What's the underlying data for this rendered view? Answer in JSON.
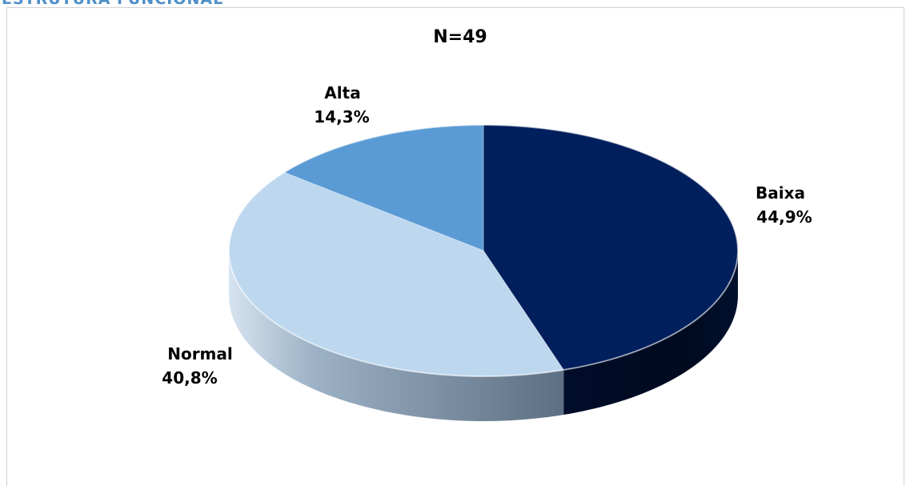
{
  "header": {
    "text": "ESTRUTURA FUNCIONAL"
  },
  "chart_data": {
    "type": "pie",
    "title": "N=49",
    "slices": [
      {
        "label": "Baixa",
        "value": 44.9,
        "value_label": "44,9%",
        "color": "#001f5c"
      },
      {
        "label": "Normal",
        "value": 40.8,
        "value_label": "40,8%",
        "color": "#bdd7ee"
      },
      {
        "label": "Alta",
        "value": 14.3,
        "value_label": "14,3%",
        "color": "#5b9bd5"
      }
    ],
    "style": "3d"
  }
}
